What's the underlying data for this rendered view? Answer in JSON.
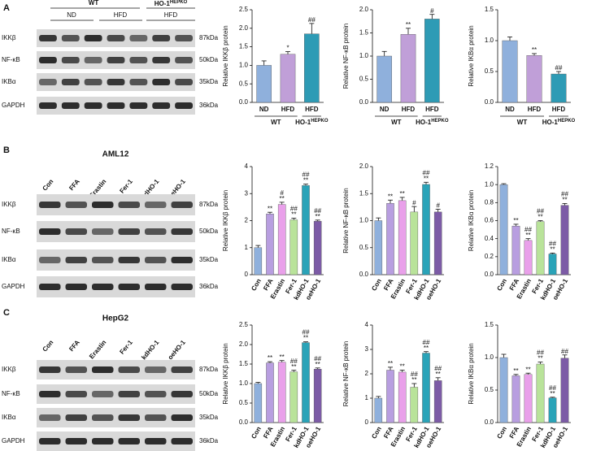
{
  "panels": [
    {
      "label": "A",
      "blot": {
        "header_groups": [
          {
            "name": "WT"
          },
          {
            "name": "HO-1",
            "sup": "HEPKO"
          }
        ],
        "header_lanes": [
          "ND",
          "HFD",
          "HFD"
        ],
        "rows": [
          {
            "protein": "IKKβ",
            "size": "87kDa"
          },
          {
            "protein": "NF-κB",
            "size": "50kDa"
          },
          {
            "protein": "IKBα",
            "size": "35kDa"
          },
          {
            "protein": "GAPDH",
            "size": "36kDa"
          }
        ]
      }
    },
    {
      "label": "B",
      "cell_line": "AML12",
      "blot": {
        "lanes": [
          "Con",
          "FFA",
          "Erastin",
          "Fer-1",
          "kdHO-1",
          "oeHO-1"
        ],
        "rows": [
          {
            "protein": "IKKβ",
            "size": "87kDa"
          },
          {
            "protein": "NF-κB",
            "size": "50kDa"
          },
          {
            "protein": "IKBα",
            "size": "35kDa"
          },
          {
            "protein": "GAPDH",
            "size": "36kDa"
          }
        ]
      }
    },
    {
      "label": "C",
      "cell_line": "HepG2",
      "blot": {
        "lanes": [
          "Con",
          "FFA",
          "Erastin",
          "Fer-1",
          "kdHO-1",
          "oeHO-1"
        ],
        "rows": [
          {
            "protein": "IKKβ",
            "size": "87kDa"
          },
          {
            "protein": "NF-κB",
            "size": "50kDa"
          },
          {
            "protein": "IKBα",
            "size": "35kDa"
          },
          {
            "protein": "GAPDH",
            "size": "36kDa"
          }
        ]
      }
    }
  ],
  "chart_data": [
    {
      "type": "bar",
      "y_label": "Relative IKKβ protein",
      "categories": [
        "ND",
        "HFD",
        "HFD"
      ],
      "groups": [
        {
          "name": "WT",
          "size": 2
        },
        {
          "name": "HO-1",
          "sup": "HEPKO",
          "size": 1
        }
      ],
      "values": [
        1.0,
        1.3,
        1.85
      ],
      "errors": [
        0.12,
        0.07,
        0.28
      ],
      "annotations": [
        [],
        [
          "*"
        ],
        [
          "##"
        ]
      ],
      "colors": [
        "#8fb0dc",
        "#c09fd8",
        "#2e9bb5"
      ],
      "ylim": [
        0,
        2.5
      ],
      "yticks": [
        {
          "value": 0,
          "label": "0.0"
        },
        0.5,
        {
          "value": 1,
          "label": "1.0"
        },
        1.5,
        {
          "value": 2,
          "label": "2.0"
        },
        2.5
      ]
    },
    {
      "type": "bar",
      "y_label": "Relative NF-κB protein",
      "categories": [
        "ND",
        "HFD",
        "HFD"
      ],
      "groups": [
        {
          "name": "WT",
          "size": 2
        },
        {
          "name": "HO-1",
          "sup": "HEPKO",
          "size": 1
        }
      ],
      "values": [
        1.0,
        1.47,
        1.8
      ],
      "errors": [
        0.1,
        0.13,
        0.1
      ],
      "annotations": [
        [],
        [
          "**"
        ],
        [
          "#"
        ]
      ],
      "colors": [
        "#8fb0dc",
        "#c09fd8",
        "#2e9bb5"
      ],
      "ylim": [
        0,
        2
      ],
      "yticks": [
        {
          "value": 0,
          "label": "0.0"
        },
        0.5,
        {
          "value": 1,
          "label": "1.0"
        },
        1.5,
        {
          "value": 2,
          "label": "2.0"
        }
      ]
    },
    {
      "type": "bar",
      "y_label": "Relative IKBα protein",
      "categories": [
        "ND",
        "HFD",
        "HFD"
      ],
      "groups": [
        {
          "name": "WT",
          "size": 2
        },
        {
          "name": "HO-1",
          "sup": "HEPKO",
          "size": 1
        }
      ],
      "values": [
        1.0,
        0.76,
        0.46
      ],
      "errors": [
        0.06,
        0.03,
        0.04
      ],
      "annotations": [
        [],
        [
          "**"
        ],
        [
          "##"
        ]
      ],
      "colors": [
        "#8fb0dc",
        "#c09fd8",
        "#2e9bb5"
      ],
      "ylim": [
        0,
        1.5
      ],
      "yticks": [
        {
          "value": 0,
          "label": "0.0"
        },
        0.5,
        {
          "value": 1,
          "label": "1.0"
        },
        1.5
      ]
    },
    {
      "type": "bar",
      "y_label": "Relative IKKβ protein",
      "categories": [
        "Con",
        "FFA",
        "Erastin",
        "Fer-1",
        "kdHO-1",
        "oeHO-1"
      ],
      "values": [
        1.0,
        2.25,
        2.6,
        2.03,
        3.3,
        1.98
      ],
      "errors": [
        0.08,
        0.06,
        0.08,
        0.06,
        0.05,
        0.04
      ],
      "annotations": [
        [],
        [
          "**"
        ],
        [
          "#",
          "**"
        ],
        [
          "##",
          "**"
        ],
        [
          "##",
          "**"
        ],
        [
          "##",
          "**"
        ]
      ],
      "colors": [
        "#8fb0dc",
        "#b89ee0",
        "#e9a0ea",
        "#b9e39a",
        "#2aa3b8",
        "#7c5ba6"
      ],
      "ylim": [
        0,
        4
      ],
      "yticks": [
        0,
        1,
        2,
        3,
        4
      ]
    },
    {
      "type": "bar",
      "y_label": "Relative NF-κB protein",
      "categories": [
        "Con",
        "FFA",
        "Erastin",
        "Fer-1",
        "kdHO-1",
        "oeHO-1"
      ],
      "values": [
        1.0,
        1.32,
        1.37,
        1.16,
        1.67,
        1.16
      ],
      "errors": [
        0.05,
        0.06,
        0.06,
        0.1,
        0.04,
        0.05
      ],
      "annotations": [
        [],
        [
          "**"
        ],
        [
          "**"
        ],
        [
          "#"
        ],
        [
          "##",
          "**"
        ],
        [
          "#"
        ]
      ],
      "colors": [
        "#8fb0dc",
        "#b89ee0",
        "#e9a0ea",
        "#b9e39a",
        "#2aa3b8",
        "#7c5ba6"
      ],
      "ylim": [
        0,
        2
      ],
      "yticks": [
        {
          "value": 0,
          "label": "0.0"
        },
        0.5,
        {
          "value": 1,
          "label": "1.0"
        },
        1.5,
        {
          "value": 2,
          "label": "2.0"
        }
      ]
    },
    {
      "type": "bar",
      "y_label": "Relative IKBα protein",
      "categories": [
        "Con",
        "FFA",
        "Erastin",
        "Fer-1",
        "kdHO-1",
        "oeHO-1"
      ],
      "values": [
        1.0,
        0.54,
        0.38,
        0.59,
        0.23,
        0.77
      ],
      "errors": [
        0.01,
        0.02,
        0.02,
        0.01,
        0.01,
        0.02
      ],
      "annotations": [
        [],
        [
          "**"
        ],
        [
          "##",
          "**"
        ],
        [
          "##",
          "**"
        ],
        [
          "##",
          "**"
        ],
        [
          "##",
          "**"
        ]
      ],
      "colors": [
        "#8fb0dc",
        "#b89ee0",
        "#e9a0ea",
        "#b9e39a",
        "#2aa3b8",
        "#7c5ba6"
      ],
      "ylim": [
        0,
        1.2
      ],
      "yticks": [
        {
          "value": 0,
          "label": "0.0"
        },
        0.2,
        0.4,
        0.6,
        0.8,
        {
          "value": 1,
          "label": "1.0"
        },
        1.2
      ]
    },
    {
      "type": "bar",
      "y_label": "Relative IKKβ protein",
      "categories": [
        "Con",
        "FFA",
        "Erastin",
        "Fer-1",
        "kdHO-1",
        "oeHO-1"
      ],
      "values": [
        1.0,
        1.53,
        1.55,
        1.3,
        2.05,
        1.37
      ],
      "errors": [
        0.03,
        0.03,
        0.04,
        0.04,
        0.02,
        0.03
      ],
      "annotations": [
        [],
        [
          "**"
        ],
        [
          "**"
        ],
        [
          "##",
          "**"
        ],
        [
          "##",
          "**"
        ],
        [
          "##",
          "**"
        ]
      ],
      "colors": [
        "#8fb0dc",
        "#b89ee0",
        "#e9a0ea",
        "#b9e39a",
        "#2aa3b8",
        "#7c5ba6"
      ],
      "ylim": [
        0,
        2.5
      ],
      "yticks": [
        {
          "value": 0,
          "label": "0.0"
        },
        0.5,
        {
          "value": 1,
          "label": "1.0"
        },
        1.5,
        {
          "value": 2,
          "label": "2.0"
        },
        2.5
      ]
    },
    {
      "type": "bar",
      "y_label": "Relative NF-κB protein",
      "categories": [
        "Con",
        "FFA",
        "Erastin",
        "Fer-1",
        "kdHO-1",
        "oeHO-1"
      ],
      "values": [
        1.0,
        2.15,
        2.07,
        1.45,
        2.85,
        1.72
      ],
      "errors": [
        0.07,
        0.12,
        0.08,
        0.15,
        0.06,
        0.12
      ],
      "annotations": [
        [],
        [
          "**"
        ],
        [
          "**"
        ],
        [
          "##",
          "**"
        ],
        [
          "##",
          "**"
        ],
        [
          "##",
          "**"
        ]
      ],
      "colors": [
        "#8fb0dc",
        "#b89ee0",
        "#e9a0ea",
        "#b9e39a",
        "#2aa3b8",
        "#7c5ba6"
      ],
      "ylim": [
        0,
        4
      ],
      "yticks": [
        0,
        1,
        2,
        3,
        4
      ]
    },
    {
      "type": "bar",
      "y_label": "Relative IKBα protein",
      "categories": [
        "Con",
        "FFA",
        "Erastin",
        "Fer-1",
        "kdHO-1",
        "oeHO-1"
      ],
      "values": [
        1.0,
        0.72,
        0.74,
        0.9,
        0.38,
        0.99
      ],
      "errors": [
        0.05,
        0.02,
        0.02,
        0.03,
        0.01,
        0.05
      ],
      "annotations": [
        [],
        [
          "**"
        ],
        [
          "**"
        ],
        [
          "##",
          "**"
        ],
        [
          "##",
          "**"
        ],
        [
          "##"
        ]
      ],
      "colors": [
        "#8fb0dc",
        "#b89ee0",
        "#e9a0ea",
        "#b9e39a",
        "#2aa3b8",
        "#7c5ba6"
      ],
      "ylim": [
        0,
        1.5
      ],
      "yticks": [
        {
          "value": 0,
          "label": "0.0"
        },
        0.5,
        {
          "value": 1,
          "label": "1.0"
        },
        1.5
      ]
    }
  ]
}
